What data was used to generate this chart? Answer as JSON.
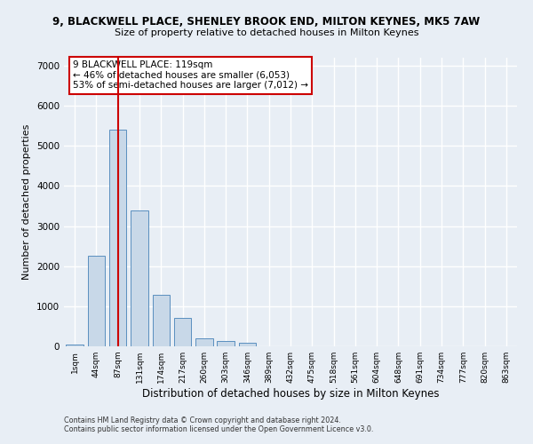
{
  "title1": "9, BLACKWELL PLACE, SHENLEY BROOK END, MILTON KEYNES, MK5 7AW",
  "title2": "Size of property relative to detached houses in Milton Keynes",
  "xlabel": "Distribution of detached houses by size in Milton Keynes",
  "ylabel": "Number of detached properties",
  "footer1": "Contains HM Land Registry data © Crown copyright and database right 2024.",
  "footer2": "Contains public sector information licensed under the Open Government Licence v3.0.",
  "categories": [
    "1sqm",
    "44sqm",
    "87sqm",
    "131sqm",
    "174sqm",
    "217sqm",
    "260sqm",
    "303sqm",
    "346sqm",
    "389sqm",
    "432sqm",
    "475sqm",
    "518sqm",
    "561sqm",
    "604sqm",
    "648sqm",
    "691sqm",
    "734sqm",
    "777sqm",
    "820sqm",
    "863sqm"
  ],
  "values": [
    50,
    2250,
    5400,
    3400,
    1280,
    700,
    200,
    130,
    80,
    0,
    0,
    0,
    0,
    0,
    0,
    0,
    0,
    0,
    0,
    0,
    0
  ],
  "bar_color": "#c8d8e8",
  "bar_edge_color": "#5a8fbf",
  "vline_x": 2,
  "vline_color": "#cc0000",
  "annotation_text": "9 BLACKWELL PLACE: 119sqm\n← 46% of detached houses are smaller (6,053)\n53% of semi-detached houses are larger (7,012) →",
  "annotation_box_color": "#ffffff",
  "annotation_box_edge": "#cc0000",
  "ylim": [
    0,
    7200
  ],
  "yticks": [
    0,
    1000,
    2000,
    3000,
    4000,
    5000,
    6000,
    7000
  ],
  "bg_color": "#e8eef5",
  "plot_bg_color": "#e8eef5",
  "grid_color": "#ffffff"
}
